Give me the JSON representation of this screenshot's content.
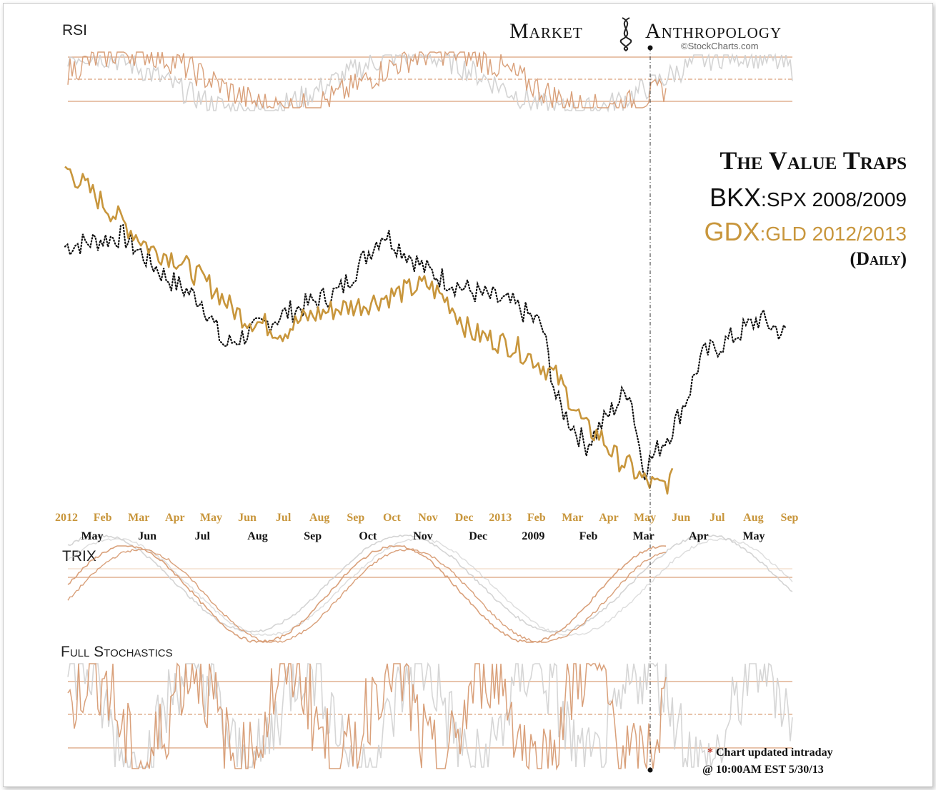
{
  "brand": {
    "name_left": "Market",
    "name_right": "Anthropology",
    "credit": "©StockCharts.com"
  },
  "title": {
    "line1": "The Value Traps",
    "bkx": "BKX",
    "bkx_rest": ":SPX 2008/2009",
    "gdx": "GDX",
    "gdx_rest": ":GLD 2012/2013",
    "period": "(Daily)"
  },
  "panels": {
    "rsi": "RSI",
    "trix": "TRIX",
    "stoch": "Full Stochastics"
  },
  "note": {
    "asterisk": "*",
    "line1": " Chart updated intraday",
    "line2": "@ 10:00AM EST 5/30/13"
  },
  "colors": {
    "gold": "#c8963c",
    "black": "#111111",
    "copper": "#d9a07a",
    "gray": "#cfcfcf"
  },
  "chart_data": {
    "type": "line",
    "title": "The Value Traps",
    "x_axis_gold": [
      "2012",
      "Feb",
      "Mar",
      "Apr",
      "May",
      "Jun",
      "Jul",
      "Aug",
      "Sep",
      "Oct",
      "Nov",
      "Dec",
      "2013",
      "Feb",
      "Mar",
      "Apr",
      "May",
      "Jun",
      "Jul",
      "Aug",
      "Sep"
    ],
    "x_axis_black": [
      "May",
      "Jun",
      "Jul",
      "Aug",
      "Sep",
      "Oct",
      "Nov",
      "Dec",
      "2009",
      "Feb",
      "Mar",
      "Apr",
      "May"
    ],
    "ylim": [
      0,
      100
    ],
    "series": [
      {
        "name": "BKX:SPX 2008/2009",
        "style": "dotted",
        "x": [
          0,
          8,
          14,
          19,
          22,
          30,
          38,
          44,
          50,
          56,
          62,
          66,
          68,
          72,
          78,
          80,
          84,
          86,
          88,
          92,
          96,
          100
        ],
        "values": [
          73,
          76,
          64,
          57,
          44,
          53,
          60,
          77,
          66,
          60,
          56,
          50,
          28,
          15,
          32,
          8,
          20,
          29,
          41,
          46,
          52,
          47
        ]
      },
      {
        "name": "GDX:GLD 2012/2013",
        "style": "solid",
        "x": [
          0,
          3,
          6,
          9,
          12,
          15,
          18,
          21,
          23,
          25,
          28,
          30,
          33,
          36,
          38,
          41,
          44,
          47,
          50,
          53,
          56,
          59,
          62,
          65,
          68,
          70,
          72,
          74,
          76,
          78,
          80,
          82,
          84
        ],
        "values": [
          96,
          90,
          84,
          78,
          72,
          70,
          65,
          60,
          55,
          52,
          50,
          48,
          52,
          54,
          55,
          56,
          58,
          60,
          62,
          57,
          48,
          46,
          44,
          40,
          35,
          28,
          20,
          18,
          12,
          9,
          5,
          3,
          5
        ]
      }
    ]
  }
}
